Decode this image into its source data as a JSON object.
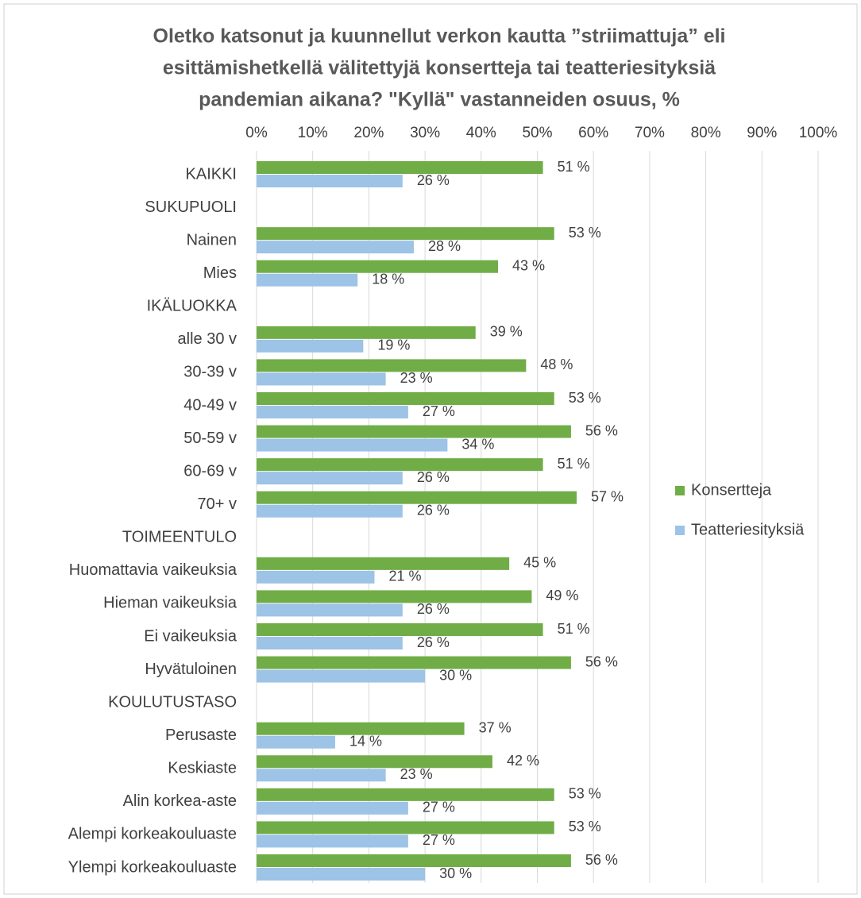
{
  "chart_data": {
    "type": "bar",
    "orientation": "horizontal",
    "title": [
      "Oletko katsonut ja kuunnellut verkon kautta ”striimattuja” eli",
      "esittämishetkellä välitettyjä konsertteja tai teatteriesityksiä",
      "pandemian aikana? \"Kyllä\" vastanneiden osuus, %"
    ],
    "categories": [
      "KAIKKI",
      "SUKUPUOLI",
      "Nainen",
      "Mies",
      "IKÄLUOKKA",
      "alle 30 v",
      "30-39 v",
      "40-49 v",
      "50-59 v",
      "60-69 v",
      "70+ v",
      "TOIMEENTULO",
      "Huomattavia vaikeuksia",
      "Hieman vaikeuksia",
      "Ei vaikeuksia",
      "Hyvätuloinen",
      "KOULUTUSTASO",
      "Perusaste",
      "Keskiaste",
      "Alin korkea-aste",
      "Alempi korkeakouluaste",
      "Ylempi korkeakouluaste"
    ],
    "series": [
      {
        "name": "Konsertteja",
        "color": "#70ad47",
        "values": [
          51,
          null,
          53,
          43,
          null,
          39,
          48,
          53,
          56,
          51,
          57,
          null,
          45,
          49,
          51,
          56,
          null,
          37,
          42,
          53,
          53,
          56
        ],
        "value_labels": [
          "51 %",
          null,
          "53 %",
          "43 %",
          null,
          "39 %",
          "48 %",
          "53 %",
          "56 %",
          "51 %",
          "57 %",
          null,
          "45 %",
          "49 %",
          "51 %",
          "56 %",
          null,
          "37 %",
          "42 %",
          "53 %",
          "53 %",
          "56 %"
        ]
      },
      {
        "name": "Teatteriesityksiä",
        "color": "#9dc3e6",
        "values": [
          26,
          null,
          28,
          18,
          null,
          19,
          23,
          27,
          34,
          26,
          26,
          null,
          21,
          26,
          26,
          30,
          null,
          14,
          23,
          27,
          27,
          30
        ],
        "value_labels": [
          "26 %",
          null,
          "28 %",
          "18 %",
          null,
          "19 %",
          "23 %",
          "27 %",
          "34 %",
          "26 %",
          "26 %",
          null,
          "21 %",
          "26 %",
          "26 %",
          "30 %",
          null,
          "14 %",
          "23 %",
          "27 %",
          "27 %",
          "30 %"
        ]
      }
    ],
    "xlim": [
      0,
      100
    ],
    "xticks": [
      {
        "value": 0,
        "label": "0%"
      },
      {
        "value": 10,
        "label": "10%"
      },
      {
        "value": 20,
        "label": "20%"
      },
      {
        "value": 30,
        "label": "30%"
      },
      {
        "value": 40,
        "label": "40%"
      },
      {
        "value": 50,
        "label": "50%"
      },
      {
        "value": 60,
        "label": "60%"
      },
      {
        "value": 70,
        "label": "70%"
      },
      {
        "value": 80,
        "label": "80%"
      },
      {
        "value": 90,
        "label": "90%"
      },
      {
        "value": 100,
        "label": "100%"
      }
    ],
    "grid": true,
    "legend": "right"
  }
}
